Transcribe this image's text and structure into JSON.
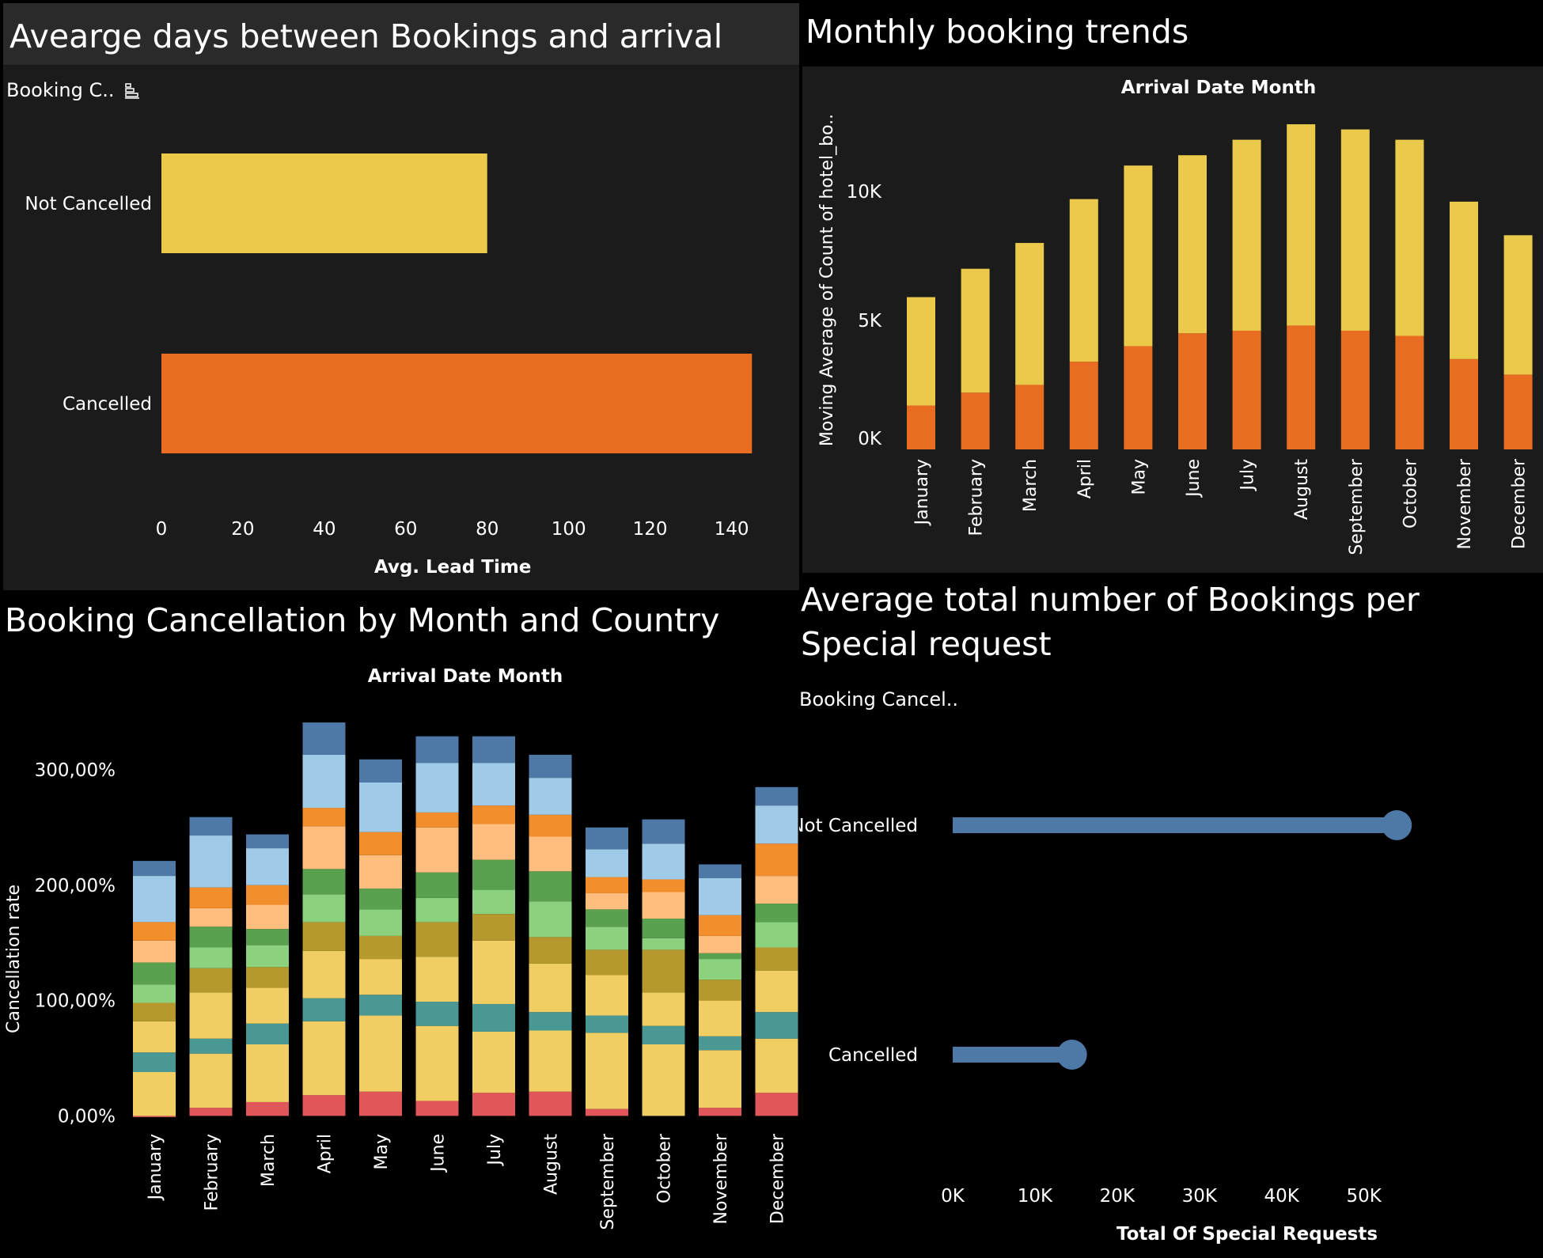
{
  "panels": [
    {
      "title": "Avearge days between Bookings and arrival",
      "header_label": "Booking C.."
    },
    {
      "title": "Monthly booking trends",
      "header_label": "Arrival Date Month"
    },
    {
      "title": "Booking Cancellation by Month and Country",
      "header_label": "Arrival Date Month"
    },
    {
      "title": "Average total number of Bookings per Special request",
      "header_label": "Booking Cancel.."
    }
  ],
  "colors": {
    "yellow": "#ebc94a",
    "orange": "#e86d21",
    "blue": "#4e79a7",
    "panel_bg": "#1b1b1b",
    "title_bg": "#2a2a2a"
  },
  "chart_data": [
    {
      "type": "bar",
      "orientation": "horizontal",
      "title": "Avearge days between Bookings and arrival",
      "categories": [
        "Not Cancelled",
        "Cancelled"
      ],
      "values": [
        80,
        145
      ],
      "xlabel": "Avg. Lead Time",
      "ylabel": "Booking C..",
      "xlim": [
        0,
        150
      ],
      "xticks": [
        0,
        20,
        40,
        60,
        80,
        100,
        120,
        140
      ],
      "bar_colors": [
        "#ebc94a",
        "#e86d21"
      ]
    },
    {
      "type": "bar",
      "stacked": true,
      "title": "Monthly booking trends",
      "header": "Arrival Date Month",
      "categories": [
        "January",
        "February",
        "March",
        "April",
        "May",
        "June",
        "July",
        "August",
        "September",
        "October",
        "November",
        "December"
      ],
      "series": [
        {
          "values": [
            1700,
            2200,
            2500,
            3400,
            4000,
            4500,
            4600,
            4800,
            4600,
            4400,
            3500,
            2900
          ],
          "color": "#e86d21"
        },
        {
          "values": [
            4200,
            4800,
            5500,
            6300,
            7000,
            6900,
            7400,
            7800,
            7800,
            7600,
            6100,
            5400
          ],
          "color": "#ebc94a"
        }
      ],
      "ylabel": "Moving Average of Count of hotel_bo..",
      "ylim": [
        0,
        13000
      ],
      "yticks": [
        0,
        5000,
        10000
      ],
      "ytick_labels": [
        "0K",
        "5K",
        "10K"
      ]
    },
    {
      "type": "bar",
      "stacked": true,
      "title": "Booking Cancellation by Month and Country",
      "header": "Arrival Date Month",
      "categories": [
        "January",
        "February",
        "March",
        "April",
        "May",
        "June",
        "July",
        "August",
        "September",
        "October",
        "November",
        "December"
      ],
      "ylabel": "Cancellation rate",
      "ylim": [
        -10,
        350
      ],
      "yticks": [
        0,
        100,
        200,
        300
      ],
      "ytick_labels": [
        "0,00%",
        "100,00%",
        "200,00%",
        "300,00%"
      ],
      "series": [
        {
          "color": "#e15759",
          "values": [
            -1,
            7,
            12,
            18,
            21,
            13,
            20,
            21,
            6,
            0,
            7,
            20
          ]
        },
        {
          "color": "#f1ce63",
          "values": [
            38,
            47,
            50,
            64,
            66,
            65,
            53,
            53,
            66,
            62,
            50,
            47
          ]
        },
        {
          "color": "#499894",
          "values": [
            17,
            13,
            18,
            20,
            18,
            21,
            24,
            16,
            15,
            16,
            12,
            23
          ]
        },
        {
          "color": "#f1ce63",
          "values": [
            27,
            40,
            31,
            41,
            31,
            39,
            55,
            42,
            35,
            29,
            31,
            36
          ]
        },
        {
          "color": "#b6992d",
          "values": [
            16,
            21,
            18,
            25,
            20,
            30,
            23,
            23,
            22,
            37,
            18,
            20
          ]
        },
        {
          "color": "#8cd17d",
          "values": [
            16,
            18,
            19,
            24,
            23,
            21,
            21,
            31,
            20,
            10,
            18,
            22
          ]
        },
        {
          "color": "#59a14f",
          "values": [
            19,
            18,
            14,
            22,
            18,
            22,
            26,
            26,
            15,
            17,
            5,
            16
          ]
        },
        {
          "color": "#ffbe7d",
          "values": [
            19,
            16,
            21,
            37,
            29,
            39,
            31,
            30,
            14,
            23,
            15,
            24
          ]
        },
        {
          "color": "#f28e2b",
          "values": [
            16,
            18,
            17,
            16,
            20,
            13,
            16,
            19,
            14,
            11,
            18,
            28
          ]
        },
        {
          "color": "#a0cbe8",
          "values": [
            40,
            45,
            32,
            46,
            43,
            43,
            37,
            32,
            24,
            31,
            32,
            33
          ]
        },
        {
          "color": "#4e79a7",
          "values": [
            13,
            16,
            12,
            28,
            20,
            23,
            23,
            20,
            19,
            21,
            12,
            16
          ]
        }
      ]
    },
    {
      "type": "lollipop",
      "orientation": "horizontal",
      "title": "Average total number of Bookings per Special request",
      "categories": [
        "Not Cancelled",
        "Cancelled"
      ],
      "values": [
        54000,
        14500
      ],
      "xlabel": "Total Of Special Requests",
      "ylabel": "Booking Cancel..",
      "xlim": [
        0,
        56000
      ],
      "xticks": [
        0,
        10000,
        20000,
        30000,
        40000,
        50000
      ],
      "xtick_labels": [
        "0K",
        "10K",
        "20K",
        "30K",
        "40K",
        "50K"
      ],
      "color": "#4e79a7"
    }
  ]
}
